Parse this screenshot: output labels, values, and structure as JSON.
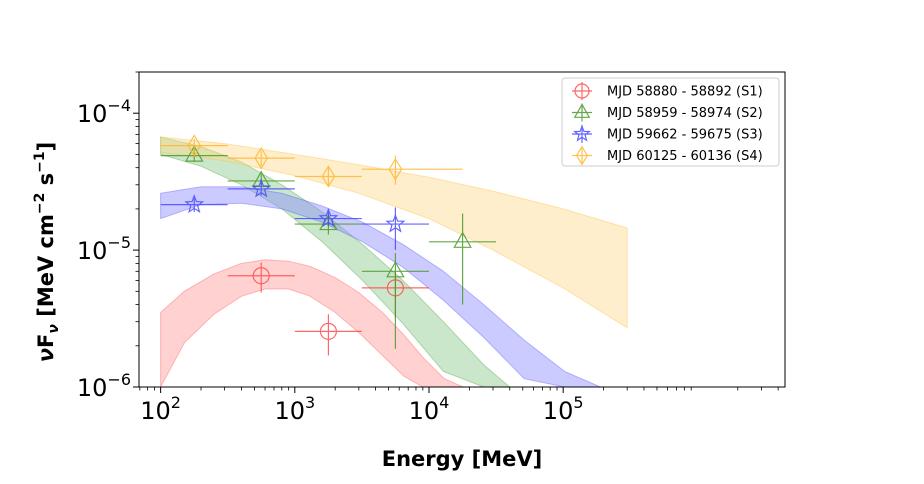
{
  "chart_data": {
    "type": "scatter",
    "title": "",
    "xlabel": "Energy [MeV]",
    "ylabel": "νFν [MeV cm⁻² s⁻¹]",
    "ylabel_parts": {
      "nu": "ν",
      "F": "F",
      "sub": "ν",
      "units": " [MeV cm",
      "exp1": "−2",
      "s": " s",
      "exp2": "−1",
      "close": "]"
    },
    "xscale": "log",
    "yscale": "log",
    "xlim": [
      69,
      4500000
    ],
    "ylim": [
      1e-06,
      0.0002
    ],
    "xticks": [
      {
        "value": 100,
        "base": "10",
        "exp": "2"
      },
      {
        "value": 1000,
        "base": "10",
        "exp": "3"
      },
      {
        "value": 10000,
        "base": "10",
        "exp": "4"
      },
      {
        "value": 100000,
        "base": "10",
        "exp": "5"
      }
    ],
    "yticks": [
      {
        "value": 1e-06,
        "base": "10",
        "exp": "−6"
      },
      {
        "value": 1e-05,
        "base": "10",
        "exp": "−5"
      },
      {
        "value": 0.0001,
        "base": "10",
        "exp": "−4"
      }
    ],
    "legend_position": "top-right",
    "series": [
      {
        "name": "MJD 58880 - 58892 (S1)",
        "color": "#ff4d4d",
        "band_color": "#ff9999",
        "marker": "circle",
        "points": [
          {
            "x": 562,
            "y": 6.5e-06,
            "xlo": 316,
            "xhi": 1000,
            "ylo": 4.9e-06,
            "yhi": 8.1e-06
          },
          {
            "x": 1780,
            "y": 2.55e-06,
            "xlo": 1000,
            "xhi": 3160,
            "ylo": 1.7e-06,
            "yhi": 3.4e-06
          },
          {
            "x": 5620,
            "y": 5.3e-06,
            "xlo": 3160,
            "xhi": 10000,
            "ylo": 3.2e-06,
            "yhi": 7e-06
          }
        ],
        "band": {
          "x": [
            100,
            150,
            250,
            400,
            600,
            900,
            1300,
            2000,
            3000,
            4500,
            6500,
            9000,
            13000,
            18000
          ],
          "upper": [
            3.5e-06,
            5e-06,
            6.7e-06,
            8e-06,
            8.5e-06,
            8.3e-06,
            7.6e-06,
            6.3e-06,
            4.9e-06,
            3.5e-06,
            2.4e-06,
            1.65e-06,
            1.15e-06,
            1e-06
          ],
          "lower": [
            1e-06,
            2.1e-06,
            3.4e-06,
            4.6e-06,
            5.2e-06,
            5.2e-06,
            4.6e-06,
            3.5e-06,
            2.5e-06,
            1.7e-06,
            1.2e-06,
            1e-06,
            1e-06,
            1e-06
          ]
        }
      },
      {
        "name": "MJD 58959 - 58974 (S2)",
        "color": "#4a9a2a",
        "band_color": "#8cc98c",
        "marker": "triangle",
        "points": [
          {
            "x": 178,
            "y": 4.9e-05,
            "xlo": 100,
            "xhi": 316,
            "ylo": 4.4e-05,
            "yhi": 5.5e-05
          },
          {
            "x": 562,
            "y": 3.2e-05,
            "xlo": 316,
            "xhi": 1000,
            "ylo": 2.9e-05,
            "yhi": 3.6e-05
          },
          {
            "x": 1780,
            "y": 1.55e-05,
            "xlo": 1000,
            "xhi": 3160,
            "ylo": 1.3e-05,
            "yhi": 1.8e-05
          },
          {
            "x": 5620,
            "y": 7e-06,
            "xlo": 3160,
            "xhi": 10000,
            "ylo": 1.9e-06,
            "yhi": 9.5e-06
          },
          {
            "x": 17800,
            "y": 1.15e-05,
            "xlo": 10000,
            "xhi": 31600,
            "ylo": 4e-06,
            "yhi": 1.85e-05
          }
        ],
        "band": {
          "x": [
            100,
            200,
            400,
            800,
            1600,
            3200,
            6400,
            12800,
            25600,
            40000,
            51200
          ],
          "upper": [
            6.7e-05,
            5.7e-05,
            4.4e-05,
            3e-05,
            1.9e-05,
            1.1e-05,
            6e-06,
            3e-06,
            1.45e-06,
            1e-06,
            1e-06
          ],
          "lower": [
            5e-05,
            4.1e-05,
            3e-05,
            2e-05,
            1.15e-05,
            6e-06,
            2.9e-06,
            1.3e-06,
            1e-06,
            1e-06,
            1e-06
          ]
        }
      },
      {
        "name": "MJD 59662 - 59675 (S3)",
        "color": "#4a4aff",
        "band_color": "#8c8cff",
        "marker": "star",
        "points": [
          {
            "x": 178,
            "y": 2.15e-05,
            "xlo": 100,
            "xhi": 316,
            "ylo": 1.9e-05,
            "yhi": 2.4e-05
          },
          {
            "x": 562,
            "y": 2.8e-05,
            "xlo": 316,
            "xhi": 1000,
            "ylo": 2.5e-05,
            "yhi": 3.1e-05
          },
          {
            "x": 1780,
            "y": 1.7e-05,
            "xlo": 1000,
            "xhi": 3160,
            "ylo": 1.5e-05,
            "yhi": 2e-05
          },
          {
            "x": 5620,
            "y": 1.55e-05,
            "xlo": 3160,
            "xhi": 10000,
            "ylo": 1e-05,
            "yhi": 2.05e-05
          }
        ],
        "band": {
          "x": [
            100,
            200,
            400,
            800,
            1600,
            3200,
            6400,
            12800,
            25600,
            51200,
            102400,
            190000
          ],
          "upper": [
            2.6e-05,
            2.9e-05,
            2.9e-05,
            2.6e-05,
            2.1e-05,
            1.6e-05,
            1.1e-05,
            7e-06,
            4e-06,
            2.2e-06,
            1.3e-06,
            1e-06
          ],
          "lower": [
            1.7e-05,
            2.15e-05,
            2.2e-05,
            2e-05,
            1.6e-05,
            1.15e-05,
            7.5e-06,
            4.3e-06,
            2.3e-06,
            1.15e-06,
            1e-06,
            1e-06
          ]
        }
      },
      {
        "name": "MJD 60125 - 60136 (S4)",
        "color": "#ffb732",
        "band_color": "#ffd98c",
        "marker": "diamond",
        "points": [
          {
            "x": 178,
            "y": 5.8e-05,
            "xlo": 100,
            "xhi": 316,
            "ylo": 5.1e-05,
            "yhi": 6.5e-05
          },
          {
            "x": 562,
            "y": 4.7e-05,
            "xlo": 316,
            "xhi": 1000,
            "ylo": 4.1e-05,
            "yhi": 5.3e-05
          },
          {
            "x": 1780,
            "y": 3.45e-05,
            "xlo": 1000,
            "xhi": 3160,
            "ylo": 2.9e-05,
            "yhi": 4e-05
          },
          {
            "x": 5620,
            "y": 3.9e-05,
            "xlo": 3160,
            "xhi": 17800,
            "ylo": 3e-05,
            "yhi": 4.9e-05
          }
        ],
        "band": {
          "x": [
            100,
            300,
            1000,
            3000,
            10000,
            30000,
            100000,
            300000
          ],
          "upper": [
            6.7e-05,
            6e-05,
            5e-05,
            4.2e-05,
            3.4e-05,
            2.7e-05,
            2e-05,
            1.45e-05
          ],
          "lower": [
            5.2e-05,
            4.5e-05,
            3.5e-05,
            2.6e-05,
            1.7e-05,
            1e-05,
            5.3e-06,
            2.7e-06
          ]
        }
      }
    ]
  }
}
